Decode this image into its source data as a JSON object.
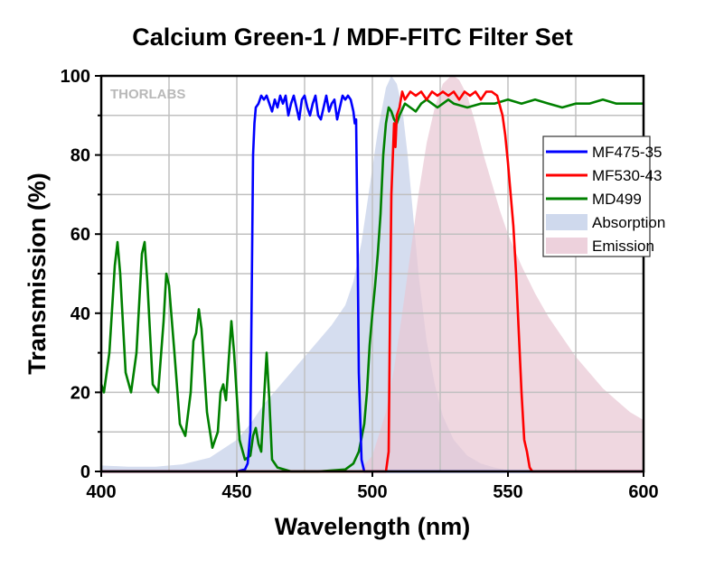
{
  "chart_data": {
    "type": "line",
    "title": "Calcium Green-1 / MDF-FITC Filter Set",
    "xlabel": "Wavelength (nm)",
    "ylabel": "Transmission (%)",
    "xlim": [
      400,
      600
    ],
    "ylim": [
      0,
      100
    ],
    "xticks": [
      400,
      450,
      500,
      550,
      600
    ],
    "yticks": [
      0,
      20,
      40,
      60,
      80,
      100
    ],
    "grid": true,
    "legend_position": "right",
    "watermark": "THORLABS",
    "series": [
      {
        "name": "MF475-35",
        "kind": "line",
        "color": "#0000ff",
        "x": [
          400,
          450,
          453,
          454,
          455,
          456,
          456.5,
          457,
          458,
          459,
          460,
          461,
          462,
          463,
          464,
          465,
          466,
          467,
          468,
          469,
          470,
          471,
          472,
          473,
          474,
          475,
          476,
          477,
          478,
          479,
          480,
          481,
          482,
          483,
          484,
          485,
          486,
          487,
          488,
          489,
          490,
          491,
          492,
          493,
          493.5,
          494,
          494.5,
          495,
          496,
          497,
          600
        ],
        "y": [
          0,
          0,
          0.5,
          2,
          10,
          80,
          88,
          92,
          93,
          95,
          94,
          95,
          93,
          91,
          94,
          92,
          95,
          93,
          95,
          90,
          93,
          95,
          92,
          89,
          94,
          95,
          92,
          90,
          93,
          95,
          90,
          89,
          92,
          95,
          91,
          93,
          94,
          89,
          92,
          95,
          94,
          95,
          94,
          91,
          88,
          89,
          60,
          25,
          3,
          0,
          0
        ]
      },
      {
        "name": "MF530-43",
        "kind": "line",
        "color": "#ff0000",
        "x": [
          400,
          505,
          506,
          506.5,
          507,
          508,
          508.5,
          509,
          510,
          511,
          512,
          514,
          516,
          518,
          520,
          522,
          524,
          526,
          528,
          530,
          532,
          534,
          536,
          538,
          540,
          542,
          544,
          546,
          548,
          549,
          550,
          551,
          552,
          553,
          554,
          555,
          556,
          557,
          558,
          559,
          600
        ],
        "y": [
          0,
          0,
          5,
          40,
          70,
          88,
          82,
          90,
          92,
          96,
          94,
          96,
          95,
          96,
          94,
          96,
          95,
          96,
          95,
          96,
          94,
          96,
          95,
          96,
          94,
          96,
          96,
          95,
          90,
          85,
          78,
          70,
          62,
          50,
          35,
          20,
          8,
          5,
          1,
          0,
          0
        ]
      },
      {
        "name": "MD499",
        "kind": "line",
        "color": "#008000",
        "x": [
          400,
          401,
          403,
          405,
          406,
          407,
          409,
          411,
          413,
          415,
          416,
          417,
          419,
          421,
          423,
          424,
          425,
          427,
          429,
          431,
          433,
          434,
          435,
          436,
          437,
          439,
          441,
          443,
          444,
          445,
          446,
          447,
          448,
          449,
          451,
          453,
          455,
          456,
          457,
          458,
          459,
          460,
          461,
          462,
          463,
          465,
          470,
          480,
          490,
          493,
          495,
          497,
          498,
          499,
          500,
          501,
          502,
          503,
          504,
          505,
          506,
          507,
          508,
          509,
          510,
          512,
          514,
          516,
          518,
          520,
          522,
          524,
          526,
          528,
          530,
          535,
          540,
          545,
          550,
          555,
          560,
          565,
          570,
          575,
          580,
          585,
          590,
          595,
          600
        ],
        "y": [
          22,
          20,
          30,
          52,
          58,
          50,
          25,
          20,
          30,
          55,
          58,
          48,
          22,
          20,
          38,
          50,
          47,
          30,
          12,
          9,
          20,
          33,
          35,
          41,
          36,
          15,
          6,
          10,
          20,
          22,
          18,
          28,
          38,
          30,
          8,
          3,
          4,
          9,
          11,
          7,
          5,
          18,
          30,
          18,
          3,
          1,
          0,
          0,
          0.5,
          2,
          5,
          12,
          20,
          32,
          40,
          47,
          55,
          65,
          80,
          88,
          92,
          91,
          89,
          88,
          90,
          93,
          92,
          91,
          93,
          94,
          93,
          92,
          93,
          94,
          93,
          92,
          93,
          93,
          94,
          93,
          94,
          93,
          92,
          93,
          93,
          94,
          93,
          93,
          93
        ]
      },
      {
        "name": "Absorption",
        "kind": "area",
        "color": "#c3cfe8",
        "x": [
          400,
          410,
          420,
          430,
          440,
          450,
          455,
          460,
          465,
          470,
          475,
          480,
          485,
          490,
          493,
          496,
          499,
          502,
          505,
          507,
          509,
          511,
          513,
          515,
          517,
          520,
          523,
          526,
          530,
          535,
          540,
          545,
          550,
          555
        ],
        "y": [
          1.5,
          1.2,
          1.2,
          1.8,
          3.5,
          8,
          12,
          17,
          21,
          25,
          29,
          33,
          37,
          42,
          48,
          58,
          72,
          86,
          97,
          100,
          98,
          92,
          80,
          65,
          50,
          33,
          22,
          14,
          8,
          4,
          2,
          1,
          0.3,
          0
        ]
      },
      {
        "name": "Emission",
        "kind": "area",
        "color": "#e8c6d3",
        "x": [
          495,
          500,
          505,
          508,
          511,
          514,
          517,
          520,
          523,
          526,
          529,
          530,
          532,
          535,
          538,
          541,
          544,
          547,
          550,
          555,
          560,
          565,
          570,
          575,
          580,
          585,
          590,
          595,
          600
        ],
        "y": [
          0,
          4,
          15,
          26,
          40,
          55,
          70,
          83,
          92,
          98,
          100,
          100,
          99,
          95,
          88,
          80,
          73,
          66,
          60,
          52,
          45,
          39,
          34,
          29,
          25,
          21,
          18,
          15,
          13
        ]
      }
    ]
  }
}
